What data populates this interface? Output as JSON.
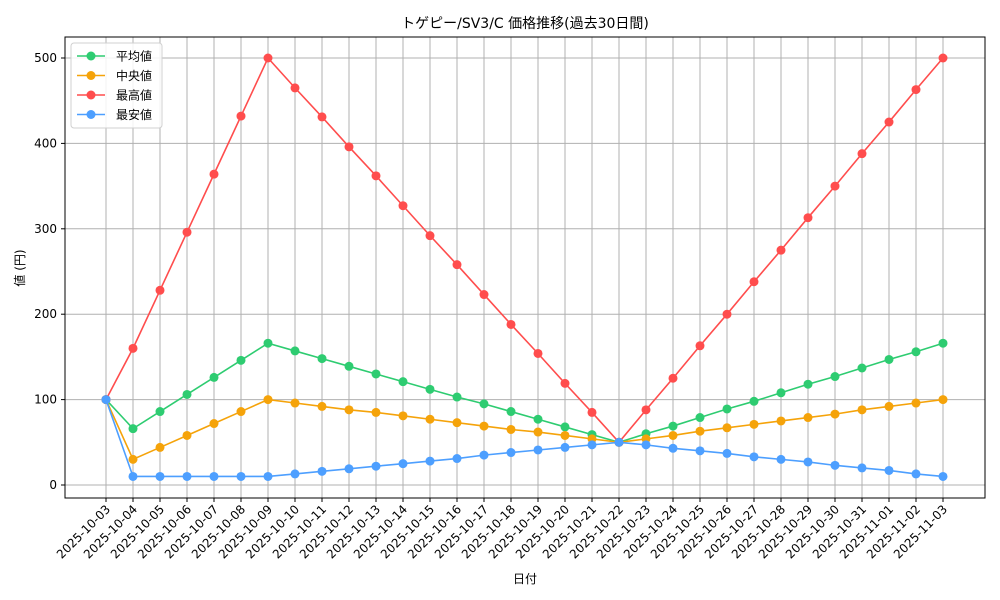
{
  "chart_data": {
    "type": "line",
    "title": "トゲピー/SV3/C 価格推移(過去30日間)",
    "xlabel": "日付",
    "ylabel": "値 (円)",
    "ylim": [
      0,
      525
    ],
    "yticks": [
      0,
      100,
      200,
      300,
      400,
      500
    ],
    "grid": true,
    "legend_position": "upper left",
    "categories": [
      "2025-10-03",
      "2025-10-04",
      "2025-10-05",
      "2025-10-06",
      "2025-10-07",
      "2025-10-08",
      "2025-10-09",
      "2025-10-10",
      "2025-10-11",
      "2025-10-12",
      "2025-10-13",
      "2025-10-14",
      "2025-10-15",
      "2025-10-16",
      "2025-10-17",
      "2025-10-18",
      "2025-10-19",
      "2025-10-20",
      "2025-10-21",
      "2025-10-22",
      "2025-10-23",
      "2025-10-24",
      "2025-10-25",
      "2025-10-26",
      "2025-10-27",
      "2025-10-28",
      "2025-10-29",
      "2025-10-30",
      "2025-10-31",
      "2025-11-01",
      "2025-11-02",
      "2025-11-03"
    ],
    "series": [
      {
        "name": "平均値",
        "color": "#2ecc71",
        "values": [
          100,
          66,
          86,
          106,
          126,
          146,
          166,
          157,
          148,
          139,
          130,
          121,
          112,
          103,
          95,
          86,
          77,
          68,
          59,
          50,
          60,
          69,
          79,
          89,
          98,
          108,
          118,
          127,
          137,
          147,
          156,
          166
        ]
      },
      {
        "name": "中央値",
        "color": "#f5a30a",
        "values": [
          100,
          30,
          44,
          58,
          72,
          86,
          100,
          96,
          92,
          88,
          85,
          81,
          77,
          73,
          69,
          65,
          62,
          58,
          54,
          50,
          54,
          58,
          63,
          67,
          71,
          75,
          79,
          83,
          88,
          92,
          96,
          100
        ]
      },
      {
        "name": "最高値",
        "color": "#ff4d4d",
        "values": [
          100,
          160,
          228,
          296,
          364,
          432,
          500,
          465,
          431,
          396,
          362,
          327,
          292,
          258,
          223,
          188,
          154,
          119,
          85,
          50,
          88,
          125,
          163,
          200,
          238,
          275,
          313,
          350,
          388,
          425,
          463,
          500
        ]
      },
      {
        "name": "最安値",
        "color": "#4d9fff",
        "values": [
          100,
          10,
          10,
          10,
          10,
          10,
          10,
          13,
          16,
          19,
          22,
          25,
          28,
          31,
          35,
          38,
          41,
          44,
          47,
          50,
          47,
          43,
          40,
          37,
          33,
          30,
          27,
          23,
          20,
          17,
          13,
          10
        ]
      }
    ]
  }
}
